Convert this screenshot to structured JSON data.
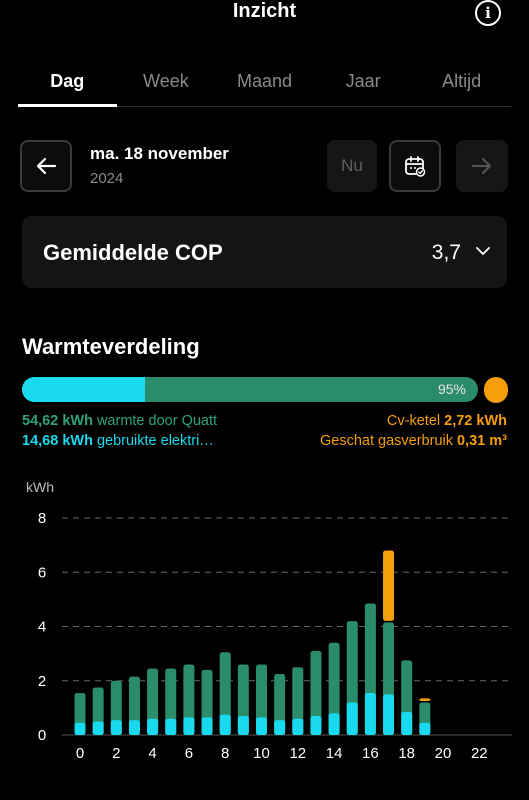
{
  "header": {
    "title": "Inzicht",
    "info_icon": "i"
  },
  "tabs": [
    {
      "label": "Dag",
      "active": true
    },
    {
      "label": "Week",
      "active": false
    },
    {
      "label": "Maand",
      "active": false
    },
    {
      "label": "Jaar",
      "active": false
    },
    {
      "label": "Altijd",
      "active": false
    }
  ],
  "date": {
    "main": "ma. 18 november",
    "year": "2024",
    "now_label": "Nu"
  },
  "cop": {
    "label": "Gemiddelde COP",
    "value": "3,7"
  },
  "distribution": {
    "title": "Warmteverdeling",
    "percent_label": "95%",
    "electric_share": 0.27,
    "heatpump_share": 0.95,
    "quatt_value": "54,62 kWh",
    "quatt_text": " warmte door Quatt",
    "electric_value": "14,68 kWh",
    "electric_text": " gebruikte elektri…",
    "boiler_text": "Cv-ketel ",
    "boiler_value": "2,72 kWh",
    "gas_text": "Geschat gasverbruik ",
    "gas_value": "0,31 m³"
  },
  "colors": {
    "heat": "#2a8c69",
    "electric": "#19d9ef",
    "boiler": "#f59e0c",
    "grid": "#666666"
  },
  "chart_data": {
    "type": "bar",
    "ylabel": "kWh",
    "ylim": [
      0,
      8
    ],
    "yticks": [
      0,
      2,
      4,
      6,
      8
    ],
    "xticks": [
      0,
      2,
      4,
      6,
      8,
      10,
      12,
      14,
      16,
      18,
      20,
      22
    ],
    "x": [
      0,
      1,
      2,
      3,
      4,
      5,
      6,
      7,
      8,
      9,
      10,
      11,
      12,
      13,
      14,
      15,
      16,
      17,
      18,
      19
    ],
    "series": [
      {
        "name": "gebruikte elektriciteit",
        "values": [
          0.45,
          0.5,
          0.55,
          0.55,
          0.6,
          0.6,
          0.65,
          0.65,
          0.75,
          0.7,
          0.65,
          0.55,
          0.6,
          0.7,
          0.8,
          1.2,
          1.55,
          1.5,
          0.85,
          0.45
        ]
      },
      {
        "name": "warmte door Quatt",
        "values": [
          1.55,
          1.75,
          2.0,
          2.15,
          2.45,
          2.45,
          2.6,
          2.4,
          3.05,
          2.6,
          2.6,
          2.25,
          2.5,
          3.1,
          3.4,
          4.2,
          4.85,
          4.15,
          2.75,
          1.2
        ]
      },
      {
        "name": "Cv-ketel",
        "values": [
          0,
          0,
          0,
          0,
          0,
          0,
          0,
          0,
          0,
          0,
          0,
          0,
          0,
          0,
          0,
          0,
          0,
          2.65,
          0,
          0.15
        ]
      }
    ]
  }
}
